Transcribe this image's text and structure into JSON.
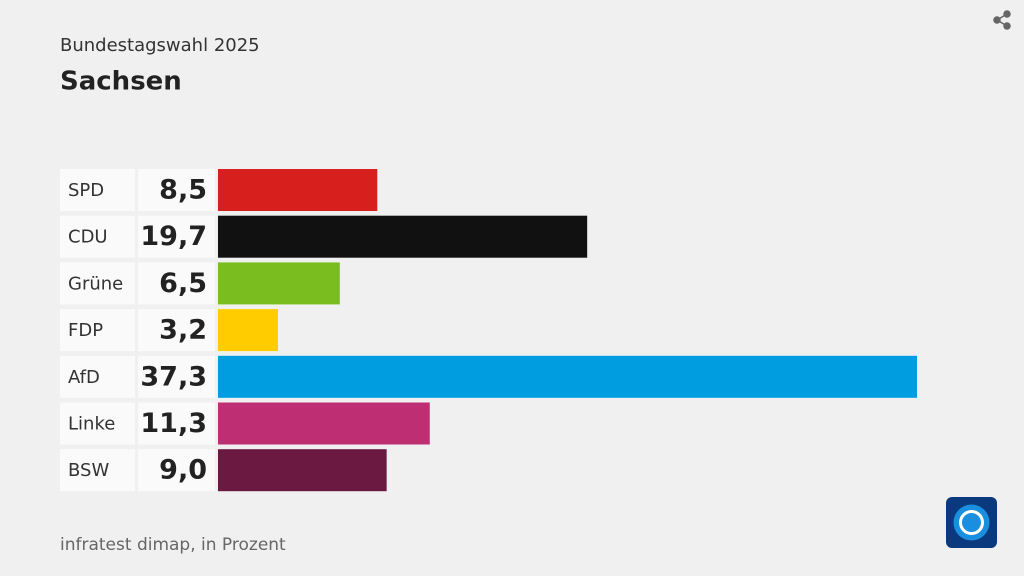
{
  "chart_data": {
    "type": "hbar",
    "subtitle": "Bundestagswahl 2025",
    "title": "Sachsen",
    "categories": [
      "SPD",
      "CDU",
      "Grüne",
      "FDP",
      "AfD",
      "Linke",
      "BSW"
    ],
    "values": [
      8.5,
      19.7,
      6.5,
      3.2,
      37.3,
      11.3,
      9.0
    ],
    "value_labels": [
      "8,5",
      "19,7",
      "6,5",
      "3,2",
      "37,3",
      "11,3",
      "9,0"
    ],
    "colors": [
      "#d7201d",
      "#111111",
      "#7abd1e",
      "#ffcc00",
      "#009ee0",
      "#be2e72",
      "#6b1941"
    ],
    "source": "infratest dimap, in Prozent"
  }
}
